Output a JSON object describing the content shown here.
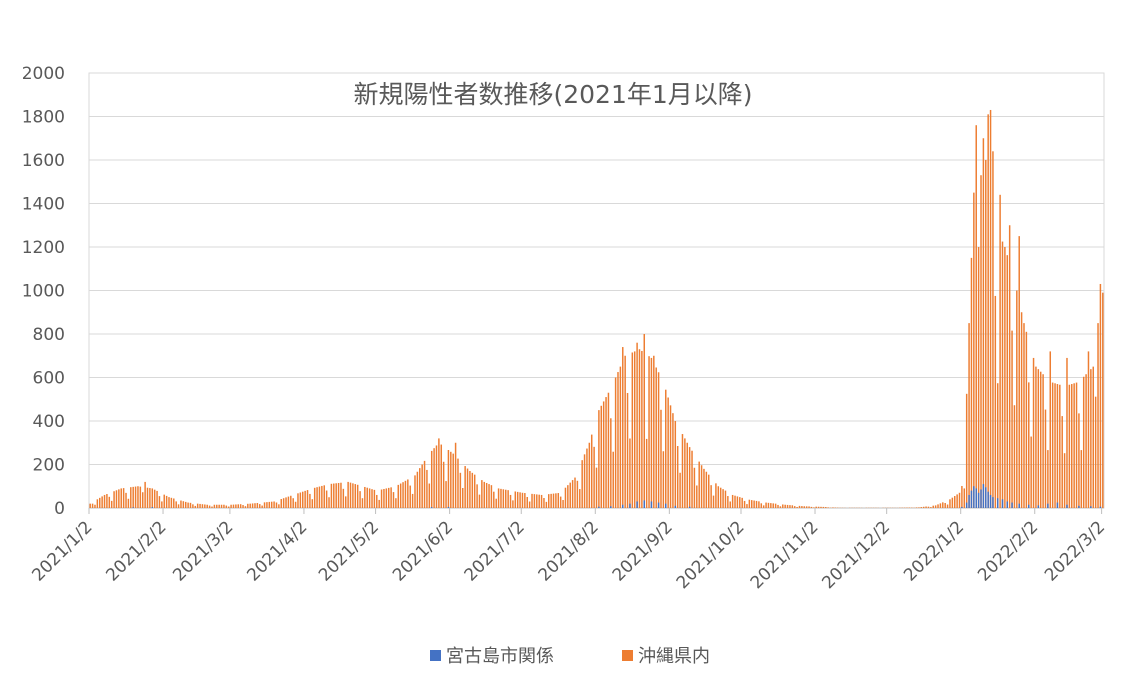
{
  "chart_data": {
    "type": "bar",
    "title": "新規陽性者数推移(2021年1月以降)",
    "xlabel": "",
    "ylabel": "",
    "ylim": [
      0,
      2000
    ],
    "yticks": [
      0,
      200,
      400,
      600,
      800,
      1000,
      1200,
      1400,
      1600,
      1800,
      2000
    ],
    "date_range": [
      "2021/1/2",
      "2022/3/2"
    ],
    "x_tick_labels": [
      "2021/1/2",
      "2021/2/2",
      "2021/3/2",
      "2021/4/2",
      "2021/5/2",
      "2021/6/2",
      "2021/7/2",
      "2021/8/2",
      "2021/9/2",
      "2021/10/2",
      "2021/11/2",
      "2021/12/2",
      "2022/1/2",
      "2022/2/2",
      "2022/3/2"
    ],
    "grid": true,
    "legend_position": "bottom",
    "colors": {
      "miyako": "#4472C4",
      "okinawa": "#ED7D31",
      "grid": "#d9d9d9",
      "text": "#595959"
    },
    "series": [
      {
        "name": "宮古島市関係",
        "color": "#4472C4",
        "points": [
          [
            "2021/1/20",
            3
          ],
          [
            "2021/1/28",
            4
          ],
          [
            "2021/5/25",
            4
          ],
          [
            "2021/6/1",
            5
          ],
          [
            "2021/8/3",
            6
          ],
          [
            "2021/8/8",
            8
          ],
          [
            "2021/8/13",
            15
          ],
          [
            "2021/8/16",
            20
          ],
          [
            "2021/8/19",
            30
          ],
          [
            "2021/8/22",
            35
          ],
          [
            "2021/8/25",
            30
          ],
          [
            "2021/8/28",
            25
          ],
          [
            "2021/8/31",
            20
          ],
          [
            "2021/9/4",
            10
          ],
          [
            "2021/9/10",
            6
          ],
          [
            "2022/1/2",
            5
          ],
          [
            "2022/1/4",
            25
          ],
          [
            "2022/1/5",
            60
          ],
          [
            "2022/1/6",
            80
          ],
          [
            "2022/1/7",
            100
          ],
          [
            "2022/1/8",
            90
          ],
          [
            "2022/1/9",
            70
          ],
          [
            "2022/1/10",
            85
          ],
          [
            "2022/1/11",
            110
          ],
          [
            "2022/1/12",
            95
          ],
          [
            "2022/1/13",
            75
          ],
          [
            "2022/1/14",
            60
          ],
          [
            "2022/1/15",
            50
          ],
          [
            "2022/1/17",
            45
          ],
          [
            "2022/1/19",
            40
          ],
          [
            "2022/1/21",
            30
          ],
          [
            "2022/1/23",
            25
          ],
          [
            "2022/1/26",
            20
          ],
          [
            "2022/1/30",
            15
          ],
          [
            "2022/2/3",
            12
          ],
          [
            "2022/2/7",
            20
          ],
          [
            "2022/2/11",
            25
          ],
          [
            "2022/2/15",
            15
          ],
          [
            "2022/2/20",
            10
          ],
          [
            "2022/2/25",
            8
          ],
          [
            "2022/3/1",
            6
          ]
        ]
      },
      {
        "name": "沖縄県内",
        "color": "#ED7D31",
        "keyframes": [
          [
            "2021/1/2",
            20
          ],
          [
            "2021/1/8",
            60
          ],
          [
            "2021/1/15",
            90
          ],
          [
            "2021/1/22",
            100
          ],
          [
            "2021/1/28",
            90
          ],
          [
            "2021/2/4",
            50
          ],
          [
            "2021/2/12",
            25
          ],
          [
            "2021/2/20",
            15
          ],
          [
            "2021/3/2",
            15
          ],
          [
            "2021/3/10",
            20
          ],
          [
            "2021/3/20",
            30
          ],
          [
            "2021/3/28",
            60
          ],
          [
            "2021/4/5",
            90
          ],
          [
            "2021/4/12",
            110
          ],
          [
            "2021/4/20",
            120
          ],
          [
            "2021/4/26",
            100
          ],
          [
            "2021/5/2",
            80
          ],
          [
            "2021/5/10",
            100
          ],
          [
            "2021/5/18",
            150
          ],
          [
            "2021/5/24",
            250
          ],
          [
            "2021/5/28",
            300
          ],
          [
            "2021/6/3",
            250
          ],
          [
            "2021/6/10",
            170
          ],
          [
            "2021/6/16",
            120
          ],
          [
            "2021/6/22",
            90
          ],
          [
            "2021/7/2",
            70
          ],
          [
            "2021/7/10",
            60
          ],
          [
            "2021/7/18",
            70
          ],
          [
            "2021/7/24",
            140
          ],
          [
            "2021/7/30",
            300
          ],
          [
            "2021/8/3",
            450
          ],
          [
            "2021/8/8",
            550
          ],
          [
            "2021/8/14",
            700
          ],
          [
            "2021/8/20",
            730
          ],
          [
            "2021/8/25",
            690
          ],
          [
            "2021/8/30",
            580
          ],
          [
            "2021/9/4",
            400
          ],
          [
            "2021/9/10",
            280
          ],
          [
            "2021/9/16",
            180
          ],
          [
            "2021/9/22",
            100
          ],
          [
            "2021/9/28",
            60
          ],
          [
            "2021/10/4",
            40
          ],
          [
            "2021/10/12",
            25
          ],
          [
            "2021/10/20",
            15
          ],
          [
            "2021/10/28",
            8
          ],
          [
            "2021/11/5",
            5
          ],
          [
            "2021/11/12",
            1
          ],
          [
            "2021/12/5",
            1
          ],
          [
            "2021/12/15",
            3
          ],
          [
            "2021/12/22",
            12
          ],
          [
            "2021/12/28",
            40
          ],
          [
            "2022/1/1",
            70
          ],
          [
            "2022/1/3",
            200
          ],
          [
            "2022/1/5",
            850
          ],
          [
            "2022/1/7",
            1450
          ],
          [
            "2022/1/9",
            1600
          ],
          [
            "2022/1/11",
            1700
          ],
          [
            "2022/1/13",
            1500
          ],
          [
            "2022/1/16",
            1300
          ],
          [
            "2022/1/20",
            1200
          ],
          [
            "2022/1/24",
            1050
          ],
          [
            "2022/1/28",
            850
          ],
          [
            "2022/2/2",
            650
          ],
          [
            "2022/2/8",
            580
          ],
          [
            "2022/2/14",
            560
          ],
          [
            "2022/2/20",
            580
          ],
          [
            "2022/2/26",
            650
          ],
          [
            "2022/3/2",
            780
          ]
        ],
        "peaks": [
          [
            "2021/1/25",
            120
          ],
          [
            "2021/5/28",
            320
          ],
          [
            "2021/6/4",
            300
          ],
          [
            "2021/8/13",
            740
          ],
          [
            "2021/8/19",
            760
          ],
          [
            "2021/8/22",
            800
          ],
          [
            "2021/8/26",
            700
          ],
          [
            "2022/1/8",
            1760
          ],
          [
            "2022/1/10",
            1530
          ],
          [
            "2022/1/13",
            1810
          ],
          [
            "2022/1/14",
            1830
          ],
          [
            "2022/1/15",
            1640
          ],
          [
            "2022/1/18",
            1440
          ],
          [
            "2022/1/22",
            1300
          ],
          [
            "2022/1/26",
            1250
          ],
          [
            "2022/2/8",
            720
          ],
          [
            "2022/2/15",
            690
          ],
          [
            "2022/2/24",
            720
          ],
          [
            "2022/2/28",
            850
          ],
          [
            "2022/3/1",
            1030
          ],
          [
            "2022/3/2",
            990
          ]
        ]
      }
    ]
  }
}
